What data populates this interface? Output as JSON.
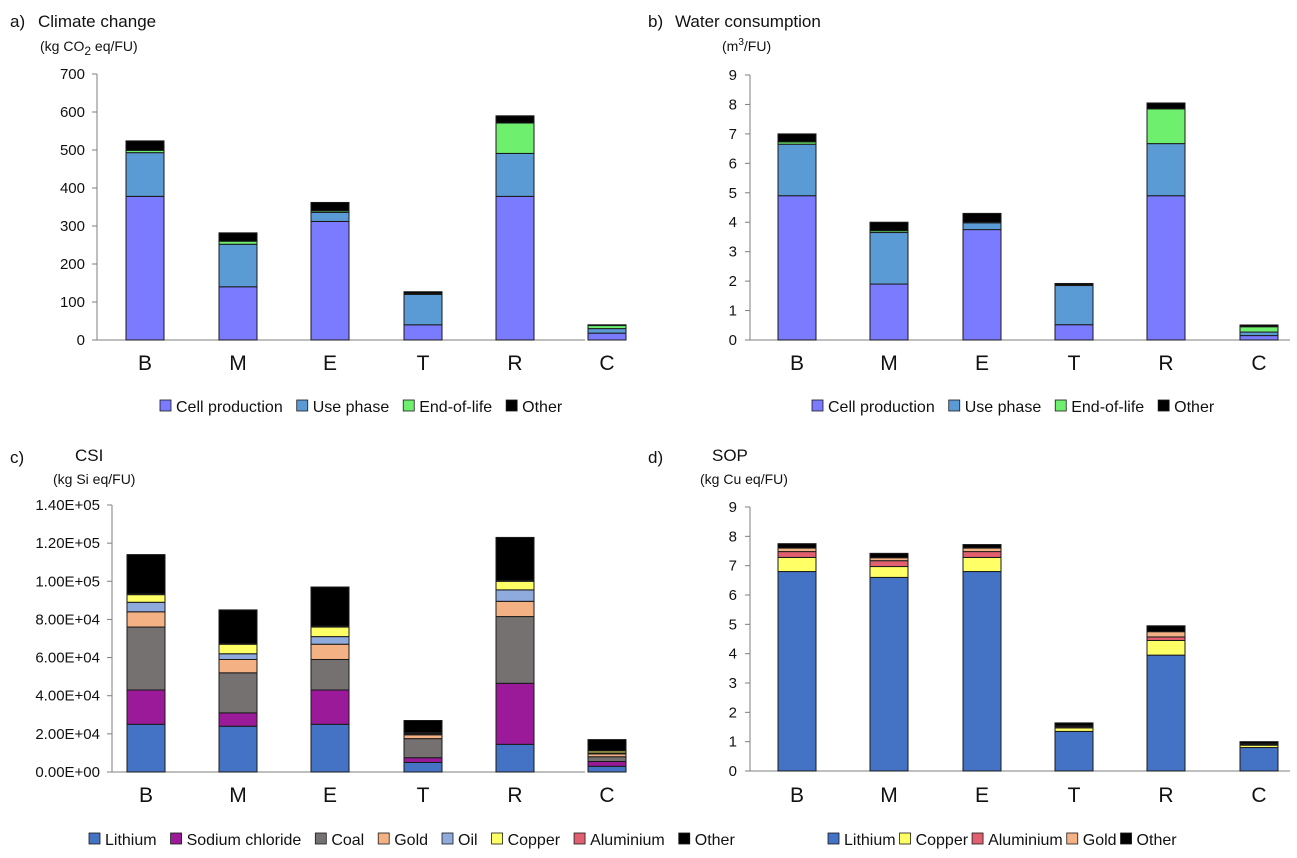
{
  "chart_data": [
    {
      "type": "bar",
      "stacked": true,
      "panel_letter": "a)",
      "title": "Climate change",
      "ylabel": "(kg CO2 eq/FU)",
      "ylim": [
        0,
        700
      ],
      "yticks": [
        0,
        100,
        200,
        300,
        400,
        500,
        600,
        700
      ],
      "ytick_labels": [
        "0",
        "100",
        "200",
        "300",
        "400",
        "500",
        "600",
        "700"
      ],
      "categories": [
        "B",
        "M",
        "E",
        "T",
        "R",
        "C"
      ],
      "series": [
        {
          "name": "Cell production",
          "color": "#7b7bff",
          "values": [
            378,
            140,
            312,
            40,
            378,
            18
          ]
        },
        {
          "name": "Use phase",
          "color": "#5b9bd5",
          "values": [
            115,
            112,
            24,
            80,
            113,
            12
          ]
        },
        {
          "name": "End-of-life",
          "color": "#6ef06e",
          "values": [
            6,
            8,
            4,
            2,
            80,
            8
          ]
        },
        {
          "name": "Other",
          "color": "#000000",
          "values": [
            25,
            22,
            22,
            5,
            19,
            2
          ]
        }
      ],
      "grid": false
    },
    {
      "type": "bar",
      "stacked": true,
      "panel_letter": "b)",
      "title": "Water consumption",
      "ylabel": "(m3/FU)",
      "ylim": [
        0,
        9
      ],
      "yticks": [
        0,
        1,
        2,
        3,
        4,
        5,
        6,
        7,
        8,
        9
      ],
      "ytick_labels": [
        "0",
        "1",
        "2",
        "3",
        "4",
        "5",
        "6",
        "7",
        "8",
        "9"
      ],
      "categories": [
        "B",
        "M",
        "E",
        "T",
        "R",
        "C"
      ],
      "series": [
        {
          "name": "Cell production",
          "color": "#7b7bff",
          "values": [
            4.9,
            1.9,
            3.75,
            0.52,
            4.9,
            0.15
          ]
        },
        {
          "name": "Use phase",
          "color": "#5b9bd5",
          "values": [
            1.75,
            1.75,
            0.23,
            1.33,
            1.77,
            0.12
          ]
        },
        {
          "name": "End-of-life",
          "color": "#6ef06e",
          "values": [
            0.08,
            0.06,
            0.02,
            0.02,
            1.18,
            0.18
          ]
        },
        {
          "name": "Other",
          "color": "#000000",
          "values": [
            0.27,
            0.29,
            0.3,
            0.05,
            0.2,
            0.06
          ]
        }
      ],
      "grid": false
    },
    {
      "type": "bar",
      "stacked": true,
      "panel_letter": "c)",
      "title": "CSI",
      "ylabel": "(kg Si eq/FU)",
      "ylim": [
        0,
        140000
      ],
      "yticks": [
        0,
        20000,
        40000,
        60000,
        80000,
        100000,
        120000,
        140000
      ],
      "ytick_labels": [
        "0.00E+00",
        "2.00E+04",
        "4.00E+04",
        "6.00E+04",
        "8.00E+04",
        "1.00E+05",
        "1.20E+05",
        "1.40E+05"
      ],
      "categories": [
        "B",
        "M",
        "E",
        "T",
        "R",
        "C"
      ],
      "series": [
        {
          "name": "Lithium",
          "color": "#4472c4",
          "values": [
            25000,
            24000,
            25000,
            5000,
            14500,
            3000
          ]
        },
        {
          "name": "Sodium chloride",
          "color": "#9a1a9a",
          "values": [
            18000,
            7000,
            18000,
            2500,
            32000,
            2500
          ]
        },
        {
          "name": "Coal",
          "color": "#767171",
          "values": [
            33000,
            21000,
            16000,
            10000,
            35000,
            2500
          ]
        },
        {
          "name": "Gold",
          "color": "#f4b183",
          "values": [
            8000,
            7000,
            8000,
            2000,
            8000,
            1500
          ]
        },
        {
          "name": "Oil",
          "color": "#8faadc",
          "values": [
            5000,
            3000,
            4000,
            500,
            6000,
            500
          ]
        },
        {
          "name": "Copper",
          "color": "#ffff66",
          "values": [
            4000,
            5000,
            5000,
            500,
            4500,
            1000
          ]
        },
        {
          "name": "Aluminium",
          "color": "#e06070",
          "values": [
            500,
            300,
            500,
            200,
            500,
            100
          ]
        },
        {
          "name": "Other",
          "color": "#000000",
          "values": [
            20500,
            17700,
            20500,
            6300,
            22500,
            5900
          ]
        }
      ],
      "grid": false
    },
    {
      "type": "bar",
      "stacked": true,
      "panel_letter": "d)",
      "title": "SOP",
      "ylabel": "(kg Cu eq/FU)",
      "ylim": [
        0,
        9
      ],
      "yticks": [
        0,
        1,
        2,
        3,
        4,
        5,
        6,
        7,
        8,
        9
      ],
      "ytick_labels": [
        "0",
        "1",
        "2",
        "3",
        "4",
        "5",
        "6",
        "7",
        "8",
        "9"
      ],
      "categories": [
        "B",
        "M",
        "E",
        "T",
        "R",
        "C"
      ],
      "series": [
        {
          "name": "Lithium",
          "color": "#4472c4",
          "values": [
            6.8,
            6.6,
            6.8,
            1.35,
            3.95,
            0.8
          ]
        },
        {
          "name": "Copper",
          "color": "#ffff66",
          "values": [
            0.48,
            0.37,
            0.48,
            0.12,
            0.5,
            0.08
          ]
        },
        {
          "name": "Aluminium",
          "color": "#e06070",
          "values": [
            0.2,
            0.2,
            0.2,
            0.04,
            0.12,
            0.03
          ]
        },
        {
          "name": "Gold",
          "color": "#f4b183",
          "values": [
            0.12,
            0.1,
            0.12,
            0.03,
            0.18,
            0.02
          ]
        },
        {
          "name": "Other",
          "color": "#000000",
          "values": [
            0.15,
            0.15,
            0.12,
            0.1,
            0.2,
            0.07
          ]
        }
      ],
      "grid": false
    }
  ]
}
